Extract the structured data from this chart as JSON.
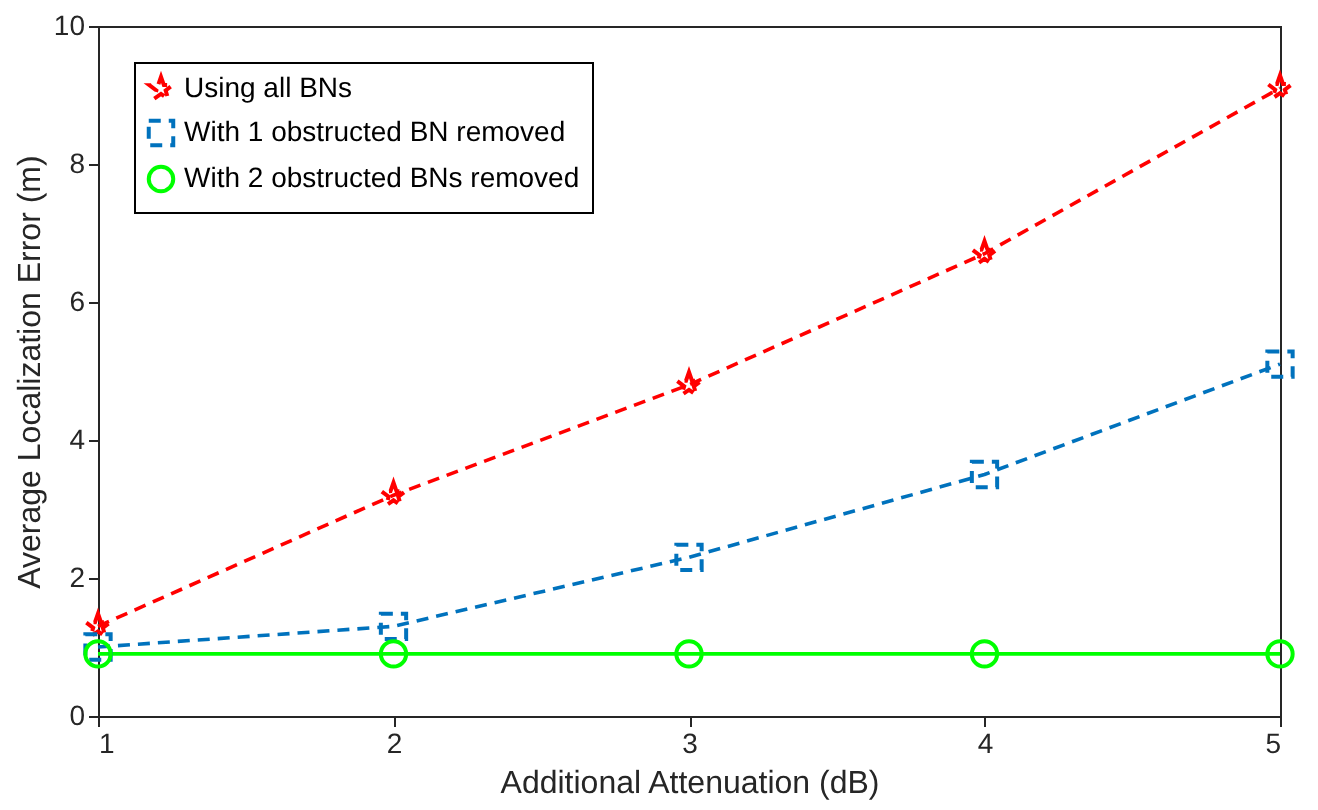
{
  "chart_data": {
    "type": "line",
    "xlabel": "Additional Attenuation (dB)",
    "ylabel": "Average Localization Error (m)",
    "x": [
      1,
      2,
      3,
      4,
      5
    ],
    "series": [
      {
        "name": "Using all BNs",
        "color": "#ff0000",
        "values": [
          1.3,
          3.2,
          4.8,
          6.7,
          9.1
        ],
        "marker": "star",
        "line_style": "dashed"
      },
      {
        "name": "With 1 obstructed BN removed",
        "color": "#0072bd",
        "values": [
          1.0,
          1.3,
          2.3,
          3.5,
          5.1
        ],
        "marker": "square",
        "line_style": "dashed"
      },
      {
        "name": "With 2 obstructed BNs removed",
        "color": "#00ff00",
        "values": [
          0.9,
          0.9,
          0.9,
          0.9,
          0.9
        ],
        "marker": "circle",
        "line_style": "solid"
      }
    ],
    "xlim": [
      1,
      5
    ],
    "xticks": [
      1,
      2,
      3,
      4,
      5
    ],
    "ylim": [
      0,
      10
    ],
    "yticks": [
      0,
      2,
      4,
      6,
      8,
      10
    ],
    "grid": false,
    "legend": "top left"
  }
}
